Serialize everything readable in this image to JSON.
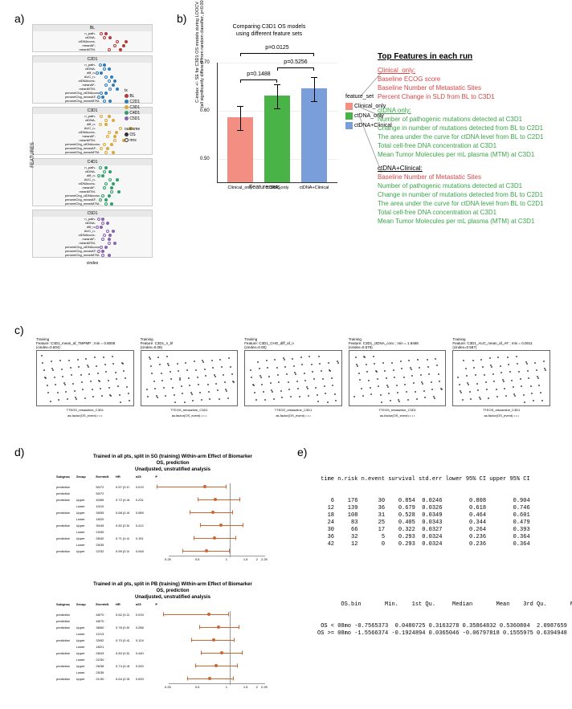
{
  "panel_labels": {
    "a": "a)",
    "b": "b)",
    "c": "c)",
    "d": "d)",
    "e": "e)"
  },
  "panel_a": {
    "axis_y_label": "FEATURES",
    "axis_x_label": "cindex",
    "legend_title": "tx",
    "outcome_title": "outcome",
    "outcomes": [
      "OS",
      "mrs"
    ],
    "facets": [
      {
        "title": "BL",
        "color": "#b33a3a",
        "rows": [
          "n_path-",
          "ctDNA-",
          "ctDNAconc-",
          "meanAF-",
          "meanMTM-"
        ],
        "points": {
          "os": [
            0.58,
            0.61,
            0.72,
            0.7,
            0.68
          ],
          "mrs": [
            0.55,
            0.57,
            0.66,
            0.64,
            0.6
          ]
        }
      },
      {
        "title": "C2D1",
        "color": "#2e7bb8",
        "rows": [
          "n_path-",
          "ctDNA-",
          "diff_n-",
          "AUC_n-",
          "ctDNAconc-",
          "meanAF-",
          "meanMTM-",
          "percentChg_ctDNAconc-",
          "percentChg_meanAF-",
          "percentChg_meanMTM-"
        ],
        "points": {
          "os": [
            0.57,
            0.6,
            0.55,
            0.62,
            0.64,
            0.63,
            0.66,
            0.58,
            0.56,
            0.61
          ],
          "mrs": [
            0.54,
            0.57,
            0.52,
            0.58,
            0.6,
            0.58,
            0.61,
            0.55,
            0.53,
            0.57
          ]
        }
      },
      {
        "title": "C3D1",
        "color": "#d9a93a",
        "rows": [
          "n_path-",
          "ctDNA-",
          "diff_n-",
          "AUC_n-",
          "ctDNAconc-",
          "meanAF-",
          "meanMTM-",
          "percentChg_ctDNAconc-",
          "percentChg_meanAF-",
          "percentChg_meanMTM-"
        ],
        "points": {
          "os": [
            0.6,
            0.63,
            0.58,
            0.75,
            0.65,
            0.64,
            0.7,
            0.62,
            0.59,
            0.63
          ],
          "mrs": [
            0.55,
            0.58,
            0.54,
            0.68,
            0.6,
            0.59,
            0.64,
            0.57,
            0.55,
            0.58
          ]
        }
      },
      {
        "title": "C4D1",
        "color": "#2e9f6b",
        "rows": [
          "n_path-",
          "ctDNA-",
          "diff_n-",
          "AUC_n-",
          "ctDNAconc-",
          "meanAF-",
          "meanMTM-",
          "percentChg_ctDNAconc-",
          "percentChg_meanAF-",
          "percentChg_meanMTM-"
        ],
        "points": {
          "os": [
            0.58,
            0.61,
            0.56,
            0.66,
            0.63,
            0.62,
            0.67,
            0.6,
            0.58,
            0.62
          ],
          "mrs": [
            0.54,
            0.57,
            0.53,
            0.61,
            0.58,
            0.57,
            0.62,
            0.56,
            0.54,
            0.58
          ]
        }
      },
      {
        "title": "C5D1",
        "color": "#8a63b0",
        "rows": [
          "n_path-",
          "ctDNA-",
          "diff_n-",
          "AUC_n-",
          "ctDNAconc-",
          "meanAF-",
          "meanMTM-",
          "percentChg_ctDNAconc-",
          "percentChg_meanAF-",
          "percentChg_meanMTM-"
        ],
        "points": {
          "os": [
            0.56,
            0.59,
            0.55,
            0.63,
            0.61,
            0.6,
            0.64,
            0.58,
            0.56,
            0.6
          ],
          "mrs": [
            0.53,
            0.56,
            0.52,
            0.59,
            0.57,
            0.56,
            0.6,
            0.55,
            0.53,
            0.56
          ]
        }
      }
    ],
    "x_ticks": [
      0.3,
      0.5,
      0.7
    ]
  },
  "panel_b": {
    "title1": "Comparing C3D1 OS models",
    "title2": "using different feature sets",
    "ylabel": "C-index +/- SE for C3D1 OS models during LOOCV\n(all significantly different from random classifier, p<0.001)",
    "xlabel": "Feature sets",
    "legend_title": "feature_set",
    "bars": [
      {
        "label": "Clinical_only",
        "color": "#f28e82",
        "value": 0.585,
        "se": 0.025
      },
      {
        "label": "ctDNA_only",
        "color": "#49b348",
        "value": 0.63,
        "se": 0.025
      },
      {
        "label": "ctDNA+Clinical",
        "color": "#7a9ed9",
        "value": 0.645,
        "se": 0.025
      }
    ],
    "ylim": [
      0.45,
      0.7
    ],
    "yticks": [
      0.5,
      0.6,
      0.7
    ],
    "pvals": [
      {
        "from": 0,
        "to": 1,
        "text": "p=0.1488",
        "y": 0.665
      },
      {
        "from": 1,
        "to": 2,
        "text": "p=0.5256",
        "y": 0.69
      },
      {
        "from": 0,
        "to": 2,
        "text": "p=0.0125",
        "y": 0.72
      }
    ]
  },
  "top_features": {
    "heading": "Top Features in each run",
    "groups": [
      {
        "name": "Clinical_only:",
        "color": "#d94545",
        "items": [
          "Baseline ECOG score",
          "Baseline Number of Metastatic Sites",
          "Percent Change in SLD from BL to C3D1"
        ]
      },
      {
        "name": "ctDNA only:",
        "color": "#3aa648",
        "items": [
          "Number of pathogenic mutations detected at C3D1",
          "Change in number of mutations detected from BL to C2D1",
          "The area under the curve for ctDNA level from BL to C2D1",
          "Total cell-free DNA concentration at C3D1",
          "Mean Tumor Molecules per mL plasma (MTM) at C3D1"
        ]
      },
      {
        "name": "ctDNA+Clinical:",
        "color": "#000",
        "items_mixed": [
          {
            "text": "Baseline Number of Metastatic Sites",
            "color": "#d94545"
          },
          {
            "text": "Number of pathogenic mutations detected at C3D1",
            "color": "#3aa648"
          },
          {
            "text": "Change in number of mutations detected from BL to C2D1",
            "color": "#3aa648"
          },
          {
            "text": "The area under the curve for ctDNA level from BL to C2D1",
            "color": "#3aa648"
          },
          {
            "text": "Total cell-free DNA concentration at C3D1",
            "color": "#3aa648"
          },
          {
            "text": "Mean Tumor Molecules per mL plasma (MTM) at C3D1",
            "color": "#3aa648"
          }
        ]
      }
    ]
  },
  "panel_c": {
    "plots": [
      {
        "title": "Training\nFeature: C3D1_mean_af_TMPMP ; min = 0.8008\n(cindex=0.604)",
        "xlabel": "TTEOS_rebaseline_C3D1",
        "sublabel": "as.factor(OS_event)"
      },
      {
        "title": "Training\nFeature: C3D1_n_bl\n(cindex=0.08)",
        "xlabel": "TTEOS_rebaseline_C3D1",
        "sublabel": "as.factor(OS_event)"
      },
      {
        "title": "Training\nFeature: C3D1_CHG_diff_af_n\n(cindex=0.00)",
        "xlabel": "TTEOS_rebaseline_C3D1",
        "sublabel": "as.factor(OS_event)"
      },
      {
        "title": "Training\nFeature: C3D1_ctDNA_conc ; min = 1.8468\n(cindex=0.578)",
        "xlabel": "TTEOS_rebaseline_C3D1",
        "sublabel": "as.factor(OS_event)"
      },
      {
        "title": "Training\nFeature: C3D1_AUC_mean_af_AF ; min = 0.0011\n(cindex=0.587)",
        "xlabel": "TTEOS_rebaseline_C3D1",
        "sublabel": "as.factor(OS_event)"
      }
    ]
  },
  "panel_d": {
    "plots": [
      {
        "title": "Trained in all pts, split in SG (training) Within-arm Effect of Biomarker\nOS, prediction\nUnadjusted, unstratified analysis",
        "header": [
          "Subgroup",
          "Group",
          "EventsN",
          "HR",
          "n25",
          "P"
        ],
        "rows": [
          [
            "prediction(10th, 0.00)",
            "",
            "50/72",
            "0.57 (0.19 - 0.92)",
            "0.019",
            ""
          ],
          [
            "prediction(20th, 0.00)",
            "",
            "50/72",
            "",
            "",
            ""
          ],
          [
            "prediction(30th, 0.00)",
            "Upper",
            "40/65",
            "0.72 (0.48 - 1.25)",
            "0.231",
            ""
          ],
          [
            "",
            "Lower",
            "10/10",
            "",
            "",
            ""
          ],
          [
            "prediction(40th, 0.00)",
            "Upper",
            "35/55",
            "0.68 (0.40 - 1.07)",
            "0.089",
            ""
          ],
          [
            "",
            "Lower",
            "18/20",
            "",
            "",
            ""
          ],
          [
            "prediction(50th, 0.00)",
            "Upper",
            "30/45",
            "0.82 (0.51 - 1.35)",
            "0.412",
            ""
          ],
          [
            "",
            "Lower",
            "23/30",
            "",
            "",
            ""
          ],
          [
            "prediction(60th, 0.00)",
            "Upper",
            "28/40",
            "0.71 (0.44 - 1.14)",
            "0.151",
            ""
          ],
          [
            "",
            "Lower",
            "25/35",
            "",
            "",
            ""
          ],
          [
            "prediction(70th, 0.00)",
            "Upper",
            "22/32",
            "0.59 (0.34 - 0.99)",
            "0.048",
            ""
          ]
        ],
        "xticks": [
          "0.25",
          "0.5",
          "1",
          "1.5",
          "2",
          "2.25"
        ]
      },
      {
        "title": "Trained in all pts, split in PB (training) Within-arm Effect of Biomarker\nOS, prediction\nUnadjusted, unstratified analysis",
        "header": [
          "Subgroup",
          "Group",
          "EventsN",
          "HR",
          "n25",
          "P"
        ],
        "rows": [
          [
            "prediction(10th, 0.00)",
            "",
            "48/70",
            "0.62 (0.22 - 0.97)",
            "0.033",
            ""
          ],
          [
            "prediction(20th, 0.00)",
            "",
            "48/70",
            "",
            "",
            ""
          ],
          [
            "prediction(30th, 0.00)",
            "Upper",
            "38/60",
            "0.78 (0.50 - 1.23)",
            "0.288",
            ""
          ],
          [
            "",
            "Lower",
            "12/13",
            "",
            "",
            ""
          ],
          [
            "prediction(40th, 0.00)",
            "Upper",
            "33/52",
            "0.70 (0.42 - 1.10)",
            "0.124",
            ""
          ],
          [
            "",
            "Lower",
            "18/21",
            "",
            "",
            ""
          ],
          [
            "prediction(50th, 0.00)",
            "Upper",
            "28/43",
            "0.83 (0.52 - 1.33)",
            "0.440",
            ""
          ],
          [
            "",
            "Lower",
            "22/30",
            "",
            "",
            ""
          ],
          [
            "prediction(60th, 0.00)",
            "Upper",
            "26/38",
            "0.74 (0.46 - 1.18)",
            "0.200",
            ""
          ],
          [
            "",
            "Lower",
            "25/35",
            "",
            "",
            ""
          ],
          [
            "prediction(70th, 0.00)",
            "Upper",
            "21/30",
            "0.64 (0.38 - 1.08)",
            "0.093",
            ""
          ]
        ],
        "xticks": [
          "0.25",
          "0.5",
          "1",
          "1.5",
          "2",
          "2.25"
        ]
      }
    ]
  },
  "panel_e": {
    "table1_header": " time n.risk n.event survival std.err lower 95% CI upper 95% CI",
    "table1_rows": [
      "    6    176      30    0.854  0.0246        0.808        0.904",
      "   12    139      36    0.679  0.0326        0.618        0.746",
      "   18    108      31    0.528  0.0349        0.464        0.601",
      "   24     83      25    0.405  0.0343        0.344        0.479",
      "   30     66      17    0.322  0.0327        0.264        0.393",
      "   36     32       5    0.293  0.0324        0.236        0.364",
      "   42     12       0    0.293  0.0324        0.236        0.364"
    ],
    "table2_header": "       OS.bin       Min.    1st Qu.     Median       Mean    3rd Qu.       Max.",
    "table2_rows": [
      " OS < 08mo -0.7565373  0.0480725 0.3163278 0.35864832 0.5360804  2.0987659",
      "OS >= 08mo -1.5566374 -0.1924894 0.0365046 -0.06797818 0.1555975 0.6394948"
    ]
  }
}
